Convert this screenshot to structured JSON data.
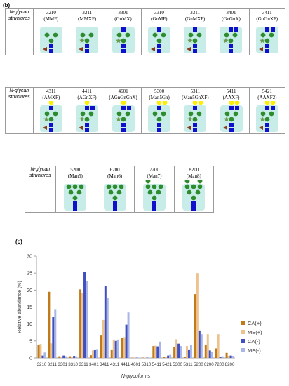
{
  "panel_b_label": "(b)",
  "panel_c_label": "(c)",
  "row_header": [
    "N-glycan",
    "structures"
  ],
  "table1": [
    {
      "code": "3210",
      "name": "(MMF)"
    },
    {
      "code": "3211",
      "name": "(MMXF)"
    },
    {
      "code": "3301",
      "name": "(GnMX)"
    },
    {
      "code": "3310",
      "name": "(GnMF)"
    },
    {
      "code": "3311",
      "name": "(GnMXF)"
    },
    {
      "code": "3401",
      "name": "(GnGnX)"
    },
    {
      "code": "3411",
      "name": "(GnGnXF)"
    }
  ],
  "table2": [
    {
      "code": "4311",
      "name": "(AMXF)"
    },
    {
      "code": "4411",
      "name": "(AGnXF)"
    },
    {
      "code": "4601",
      "name": "(AGnGnGnX)"
    },
    {
      "code": "5300",
      "name": "(Man5Gn)"
    },
    {
      "code": "5311",
      "name": "(Man5GnXF)"
    },
    {
      "code": "5411",
      "name": "(AAXF)"
    },
    {
      "code": "5421",
      "name": "(AAXF2)"
    }
  ],
  "table3": [
    {
      "code": "5200",
      "name": "(Man5)"
    },
    {
      "code": "6200",
      "name": "(Man6)"
    },
    {
      "code": "7200",
      "name": "(Man7)"
    },
    {
      "code": "8200",
      "name": "(Man8)"
    }
  ],
  "colors": {
    "mannose": "#2e8b2e",
    "glcnac": "#1010cc",
    "galactose": "#ffee00",
    "xylose": "#6b9b50",
    "fucose": "#8b3a1a",
    "halo": "#c8ece8"
  },
  "chart_data": {
    "type": "bar",
    "title": "",
    "xlabel": "N-glycoforms",
    "ylabel": "Relative abundance (%)",
    "ylim": [
      0,
      30
    ],
    "yticks": [
      0,
      5,
      10,
      15,
      20,
      25,
      30
    ],
    "categories": [
      "3210",
      "3211",
      "3301",
      "3310",
      "3311",
      "3401",
      "3411",
      "4311",
      "4411",
      "4601",
      "5310",
      "5411",
      "5421",
      "5300",
      "5311",
      "5200",
      "6200",
      "7200",
      "8200"
    ],
    "legend_position": "right",
    "series": [
      {
        "name": "CA(+)",
        "color": "#c07a1a",
        "values": [
          3.8,
          19.5,
          0.5,
          0.5,
          20.2,
          0.8,
          6.6,
          2.5,
          5.8,
          0.1,
          0.1,
          3.5,
          0.2,
          3.2,
          0.2,
          18.8,
          3.9,
          2.8,
          1.5
        ]
      },
      {
        "name": "ME(+)",
        "color": "#ecc38f",
        "values": [
          4.1,
          4.3,
          0.3,
          0.2,
          19.2,
          2.2,
          11.2,
          5.4,
          6.1,
          0.1,
          0.1,
          3.6,
          0.4,
          5.5,
          3.5,
          25.0,
          7.0,
          7.0,
          0.6
        ]
      },
      {
        "name": "CA(-)",
        "color": "#4050c0",
        "values": [
          0.7,
          12.0,
          0.7,
          0.6,
          25.4,
          2.4,
          21.3,
          5.0,
          9.8,
          0.1,
          0.1,
          3.4,
          0.7,
          4.2,
          2.5,
          8.1,
          2.2,
          0.4,
          0.7
        ]
      },
      {
        "name": "ME(-)",
        "color": "#a9b6e6",
        "values": [
          1.6,
          14.4,
          0.5,
          0.5,
          22.6,
          2.6,
          17.8,
          5.4,
          13.4,
          0.1,
          0.1,
          4.8,
          0.9,
          3.5,
          3.9,
          7.0,
          1.7,
          0.5,
          0.6
        ]
      }
    ]
  }
}
